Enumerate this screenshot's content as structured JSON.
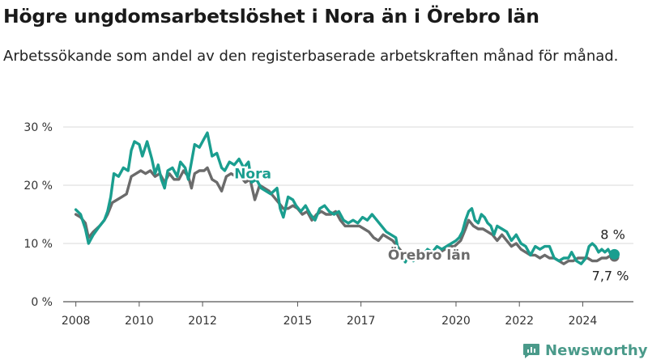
{
  "header": {
    "title": "Högre ungdomsarbetslöshet i Nora än i Örebro län",
    "subtitle": "Arbetssökande som andel av den registerbaserade arbetskraften månad för månad."
  },
  "brand": {
    "name": "Newsworthy",
    "color": "#4a9a8a"
  },
  "chart_data": {
    "type": "line",
    "title": "Högre ungdomsarbetslöshet i Nora än i Örebro län",
    "subtitle": "Arbetssökande som andel av den registerbaserade arbetskraften månad för månad.",
    "xlim": [
      2007.6,
      2025.6
    ],
    "ylim": [
      0,
      30
    ],
    "x_ticks": [
      2008,
      2010,
      2012,
      2015,
      2017,
      2020,
      2022,
      2024
    ],
    "y_ticks": [
      {
        "value": 0,
        "label": "0 %"
      },
      {
        "value": 10,
        "label": "10 %"
      },
      {
        "value": 20,
        "label": "20 %"
      },
      {
        "value": 30,
        "label": "30 %"
      }
    ],
    "grid": "horizontal",
    "legend": "inline labels",
    "series": [
      {
        "name": "Nora",
        "color": "#1a9e8f",
        "final_label": "8 %",
        "points": [
          [
            2008.0,
            15.8
          ],
          [
            2008.15,
            15.0
          ],
          [
            2008.3,
            12.5
          ],
          [
            2008.4,
            10.0
          ],
          [
            2008.55,
            11.5
          ],
          [
            2008.75,
            13.0
          ],
          [
            2008.9,
            14.0
          ],
          [
            2009.0,
            15.5
          ],
          [
            2009.1,
            18.0
          ],
          [
            2009.2,
            22.0
          ],
          [
            2009.35,
            21.5
          ],
          [
            2009.5,
            23.0
          ],
          [
            2009.65,
            22.5
          ],
          [
            2009.75,
            26.0
          ],
          [
            2009.85,
            27.5
          ],
          [
            2010.0,
            27.0
          ],
          [
            2010.1,
            25.0
          ],
          [
            2010.25,
            27.5
          ],
          [
            2010.4,
            24.5
          ],
          [
            2010.5,
            22.0
          ],
          [
            2010.6,
            23.5
          ],
          [
            2010.7,
            21.0
          ],
          [
            2010.8,
            19.5
          ],
          [
            2010.9,
            22.5
          ],
          [
            2011.05,
            23.0
          ],
          [
            2011.2,
            21.5
          ],
          [
            2011.3,
            24.0
          ],
          [
            2011.45,
            23.0
          ],
          [
            2011.55,
            21.0
          ],
          [
            2011.65,
            24.0
          ],
          [
            2011.75,
            27.0
          ],
          [
            2011.9,
            26.5
          ],
          [
            2012.05,
            28.0
          ],
          [
            2012.15,
            29.0
          ],
          [
            2012.3,
            25.0
          ],
          [
            2012.45,
            25.5
          ],
          [
            2012.6,
            23.0
          ],
          [
            2012.7,
            22.5
          ],
          [
            2012.85,
            24.0
          ],
          [
            2013.0,
            23.5
          ],
          [
            2013.15,
            24.5
          ],
          [
            2013.3,
            23.0
          ],
          [
            2013.45,
            24.0
          ],
          [
            2013.55,
            20.5
          ],
          [
            2013.7,
            21.0
          ],
          [
            2013.85,
            19.5
          ],
          [
            2014.0,
            19.0
          ],
          [
            2014.15,
            18.5
          ],
          [
            2014.35,
            19.5
          ],
          [
            2014.45,
            16.0
          ],
          [
            2014.55,
            14.5
          ],
          [
            2014.7,
            18.0
          ],
          [
            2014.85,
            17.5
          ],
          [
            2014.95,
            16.5
          ],
          [
            2015.1,
            15.5
          ],
          [
            2015.25,
            16.5
          ],
          [
            2015.4,
            15.0
          ],
          [
            2015.55,
            14.0
          ],
          [
            2015.7,
            16.0
          ],
          [
            2015.85,
            16.5
          ],
          [
            2016.0,
            15.5
          ],
          [
            2016.15,
            15.0
          ],
          [
            2016.3,
            15.5
          ],
          [
            2016.45,
            14.0
          ],
          [
            2016.6,
            13.5
          ],
          [
            2016.75,
            14.0
          ],
          [
            2016.9,
            13.5
          ],
          [
            2017.05,
            14.5
          ],
          [
            2017.2,
            14.0
          ],
          [
            2017.35,
            15.0
          ],
          [
            2017.5,
            14.0
          ],
          [
            2017.65,
            13.0
          ],
          [
            2017.8,
            12.0
          ],
          [
            2017.95,
            11.5
          ],
          [
            2018.1,
            11.0
          ],
          [
            2018.2,
            8.0
          ],
          [
            2018.3,
            7.5
          ],
          [
            2018.4,
            6.8
          ],
          [
            2018.5,
            8.0
          ],
          [
            2018.65,
            7.0
          ],
          [
            2018.8,
            8.5
          ],
          [
            2018.95,
            8.0
          ],
          [
            2019.1,
            9.0
          ],
          [
            2019.25,
            8.5
          ],
          [
            2019.4,
            9.5
          ],
          [
            2019.55,
            9.0
          ],
          [
            2019.7,
            9.5
          ],
          [
            2019.85,
            10.0
          ],
          [
            2020.0,
            10.5
          ],
          [
            2020.1,
            11.0
          ],
          [
            2020.2,
            12.0
          ],
          [
            2020.3,
            14.0
          ],
          [
            2020.4,
            15.5
          ],
          [
            2020.5,
            16.0
          ],
          [
            2020.6,
            14.0
          ],
          [
            2020.7,
            13.5
          ],
          [
            2020.8,
            15.0
          ],
          [
            2020.9,
            14.5
          ],
          [
            2021.0,
            13.5
          ],
          [
            2021.1,
            13.0
          ],
          [
            2021.2,
            11.5
          ],
          [
            2021.3,
            13.0
          ],
          [
            2021.45,
            12.5
          ],
          [
            2021.6,
            12.0
          ],
          [
            2021.75,
            10.5
          ],
          [
            2021.9,
            11.5
          ],
          [
            2022.05,
            10.0
          ],
          [
            2022.2,
            9.5
          ],
          [
            2022.35,
            8.0
          ],
          [
            2022.5,
            9.5
          ],
          [
            2022.65,
            9.0
          ],
          [
            2022.8,
            9.5
          ],
          [
            2022.95,
            9.5
          ],
          [
            2023.1,
            7.5
          ],
          [
            2023.25,
            7.0
          ],
          [
            2023.4,
            7.5
          ],
          [
            2023.55,
            7.5
          ],
          [
            2023.65,
            8.5
          ],
          [
            2023.8,
            7.0
          ],
          [
            2023.95,
            6.5
          ],
          [
            2024.1,
            7.5
          ],
          [
            2024.2,
            9.5
          ],
          [
            2024.3,
            10.0
          ],
          [
            2024.4,
            9.5
          ],
          [
            2024.5,
            8.5
          ],
          [
            2024.6,
            9.0
          ],
          [
            2024.7,
            8.5
          ],
          [
            2024.8,
            9.0
          ],
          [
            2024.9,
            8.0
          ],
          [
            2025.0,
            8.0
          ]
        ]
      },
      {
        "name": "Örebro län",
        "color": "#6b6b6b",
        "final_label": "7,7 %",
        "points": [
          [
            2008.0,
            15.0
          ],
          [
            2008.15,
            14.5
          ],
          [
            2008.3,
            13.5
          ],
          [
            2008.4,
            11.0
          ],
          [
            2008.55,
            12.0
          ],
          [
            2008.75,
            13.0
          ],
          [
            2008.9,
            14.0
          ],
          [
            2009.0,
            15.0
          ],
          [
            2009.15,
            17.0
          ],
          [
            2009.3,
            17.5
          ],
          [
            2009.45,
            18.0
          ],
          [
            2009.6,
            18.5
          ],
          [
            2009.75,
            21.5
          ],
          [
            2009.9,
            22.0
          ],
          [
            2010.05,
            22.5
          ],
          [
            2010.2,
            22.0
          ],
          [
            2010.35,
            22.5
          ],
          [
            2010.5,
            21.5
          ],
          [
            2010.65,
            22.0
          ],
          [
            2010.8,
            20.5
          ],
          [
            2010.95,
            22.0
          ],
          [
            2011.1,
            21.0
          ],
          [
            2011.25,
            21.0
          ],
          [
            2011.4,
            22.5
          ],
          [
            2011.55,
            21.5
          ],
          [
            2011.65,
            19.5
          ],
          [
            2011.75,
            22.0
          ],
          [
            2011.9,
            22.5
          ],
          [
            2012.05,
            22.5
          ],
          [
            2012.15,
            23.0
          ],
          [
            2012.3,
            21.0
          ],
          [
            2012.45,
            20.5
          ],
          [
            2012.6,
            19.0
          ],
          [
            2012.75,
            21.5
          ],
          [
            2012.9,
            22.0
          ],
          [
            2013.05,
            21.5
          ],
          [
            2013.2,
            21.5
          ],
          [
            2013.35,
            20.5
          ],
          [
            2013.5,
            21.0
          ],
          [
            2013.65,
            17.5
          ],
          [
            2013.8,
            20.0
          ],
          [
            2013.95,
            19.5
          ],
          [
            2014.1,
            19.0
          ],
          [
            2014.25,
            18.0
          ],
          [
            2014.4,
            17.0
          ],
          [
            2014.55,
            16.0
          ],
          [
            2014.7,
            16.0
          ],
          [
            2014.85,
            16.5
          ],
          [
            2015.0,
            16.0
          ],
          [
            2015.15,
            15.0
          ],
          [
            2015.3,
            15.5
          ],
          [
            2015.45,
            14.0
          ],
          [
            2015.6,
            15.0
          ],
          [
            2015.75,
            15.5
          ],
          [
            2015.9,
            15.0
          ],
          [
            2016.05,
            15.0
          ],
          [
            2016.2,
            15.5
          ],
          [
            2016.35,
            14.0
          ],
          [
            2016.5,
            13.0
          ],
          [
            2016.65,
            13.0
          ],
          [
            2016.8,
            13.0
          ],
          [
            2016.95,
            13.0
          ],
          [
            2017.1,
            12.5
          ],
          [
            2017.25,
            12.0
          ],
          [
            2017.4,
            11.0
          ],
          [
            2017.55,
            10.5
          ],
          [
            2017.7,
            11.5
          ],
          [
            2017.85,
            11.0
          ],
          [
            2018.0,
            10.5
          ],
          [
            2018.15,
            9.5
          ],
          [
            2018.3,
            8.5
          ],
          [
            2018.45,
            8.0
          ],
          [
            2018.6,
            8.0
          ],
          [
            2018.75,
            8.5
          ],
          [
            2018.9,
            8.5
          ],
          [
            2019.05,
            8.5
          ],
          [
            2019.2,
            8.5
          ],
          [
            2019.35,
            8.5
          ],
          [
            2019.5,
            8.5
          ],
          [
            2019.65,
            9.0
          ],
          [
            2019.8,
            9.5
          ],
          [
            2019.95,
            9.5
          ],
          [
            2020.05,
            10.0
          ],
          [
            2020.15,
            10.5
          ],
          [
            2020.3,
            12.5
          ],
          [
            2020.4,
            14.0
          ],
          [
            2020.55,
            13.0
          ],
          [
            2020.7,
            12.5
          ],
          [
            2020.85,
            12.5
          ],
          [
            2021.0,
            12.0
          ],
          [
            2021.15,
            11.5
          ],
          [
            2021.3,
            10.5
          ],
          [
            2021.45,
            11.5
          ],
          [
            2021.6,
            10.5
          ],
          [
            2021.75,
            9.5
          ],
          [
            2021.9,
            10.0
          ],
          [
            2022.05,
            9.0
          ],
          [
            2022.2,
            8.5
          ],
          [
            2022.35,
            8.0
          ],
          [
            2022.5,
            8.0
          ],
          [
            2022.65,
            7.5
          ],
          [
            2022.8,
            8.0
          ],
          [
            2022.95,
            7.5
          ],
          [
            2023.1,
            7.5
          ],
          [
            2023.25,
            7.0
          ],
          [
            2023.4,
            6.5
          ],
          [
            2023.55,
            7.0
          ],
          [
            2023.7,
            7.0
          ],
          [
            2023.85,
            7.5
          ],
          [
            2024.0,
            7.5
          ],
          [
            2024.15,
            7.5
          ],
          [
            2024.3,
            7.0
          ],
          [
            2024.45,
            7.0
          ],
          [
            2024.6,
            7.5
          ],
          [
            2024.75,
            7.5
          ],
          [
            2024.9,
            8.0
          ],
          [
            2025.0,
            7.7
          ]
        ]
      }
    ]
  }
}
